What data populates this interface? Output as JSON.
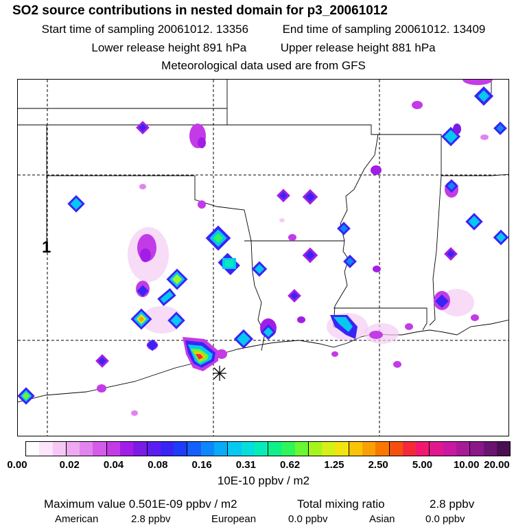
{
  "header": {
    "title": "SO2 source contributions in nested domain for p3_20061012",
    "start_label": "Start time of sampling 20061012. 13356",
    "end_label": "End time of sampling 20061012. 13409",
    "lower_label": "Lower release height  891 hPa",
    "upper_label": "Upper release height  881 hPa",
    "met_label": "Meteorological data used are from GFS"
  },
  "map": {
    "marker_label": "1",
    "source_marker": "asterisk-icon"
  },
  "colorbar": {
    "ticks": [
      "0.00",
      "0.02",
      "0.04",
      "0.08",
      "0.16",
      "0.31",
      "0.62",
      "1.25",
      "2.50",
      "5.00",
      "10.00",
      "20.00"
    ],
    "units": "10E-10 ppbv / m2",
    "colors": [
      "#ffffff",
      "#fbe6fb",
      "#f5c8f5",
      "#eeaaf0",
      "#e184ee",
      "#d45ce9",
      "#c33be6",
      "#a21ee6",
      "#7c1be8",
      "#5a1ef0",
      "#3a24f5",
      "#1f3cf8",
      "#1560fa",
      "#0d88fa",
      "#09aaf8",
      "#06c8f0",
      "#05dedc",
      "#06ecb8",
      "#0ef08a",
      "#2ff45a",
      "#6af630",
      "#a6f41e",
      "#d4f018",
      "#f2e410",
      "#f9c408",
      "#f9a004",
      "#f87800",
      "#f65010",
      "#f42a3a",
      "#f21870",
      "#e01890",
      "#c81aa0",
      "#a81a98",
      "#8a1888",
      "#6a1470",
      "#4a0e52"
    ]
  },
  "stats": {
    "max_label": "Maximum value  0.501E-09 ppbv / m2",
    "total_label": "Total mixing ratio",
    "total_value": "2.8 ppbv",
    "american_label": "American",
    "american_value": "2.8 ppbv",
    "european_label": "European",
    "european_value": "0.0 ppbv",
    "asian_label": "Asian",
    "asian_value": "0.0 ppbv"
  }
}
